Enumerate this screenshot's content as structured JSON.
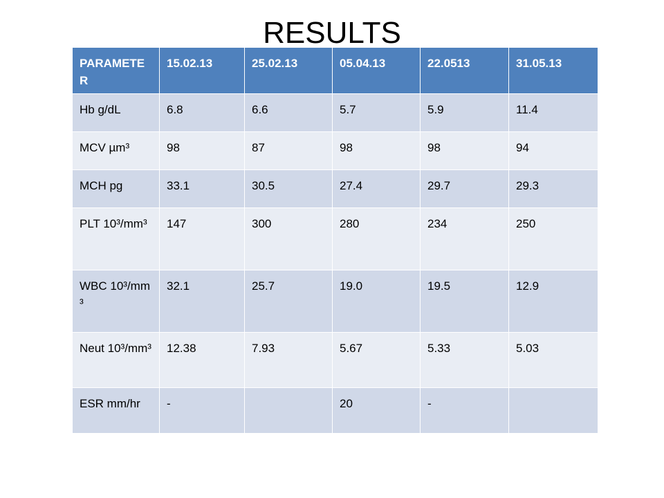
{
  "title": "RESULTS",
  "table": {
    "header": [
      "PARAMETER",
      "15.02.13",
      "25.02.13",
      "05.04.13",
      "22.0513",
      "31.05.13"
    ],
    "rows": [
      [
        "Hb g/dL",
        "6.8",
        "6.6",
        "5.7",
        "5.9",
        "11.4"
      ],
      [
        "MCV µm³",
        "98",
        "87",
        "98",
        "98",
        "94"
      ],
      [
        "MCH pg",
        "33.1",
        "30.5",
        "27.4",
        "29.7",
        "29.3"
      ],
      [
        "PLT 10³/mm³",
        "147",
        "300",
        "280",
        "234",
        "250"
      ],
      [
        "WBC 10³/mm³",
        "32.1",
        "25.7",
        "19.0",
        "19.5",
        "12.9"
      ],
      [
        "Neut 10³/mm³",
        "12.38",
        "7.93",
        "5.67",
        "5.33",
        "5.03"
      ],
      [
        "ESR mm/hr",
        "-",
        null,
        "20",
        "-",
        null
      ]
    ]
  }
}
